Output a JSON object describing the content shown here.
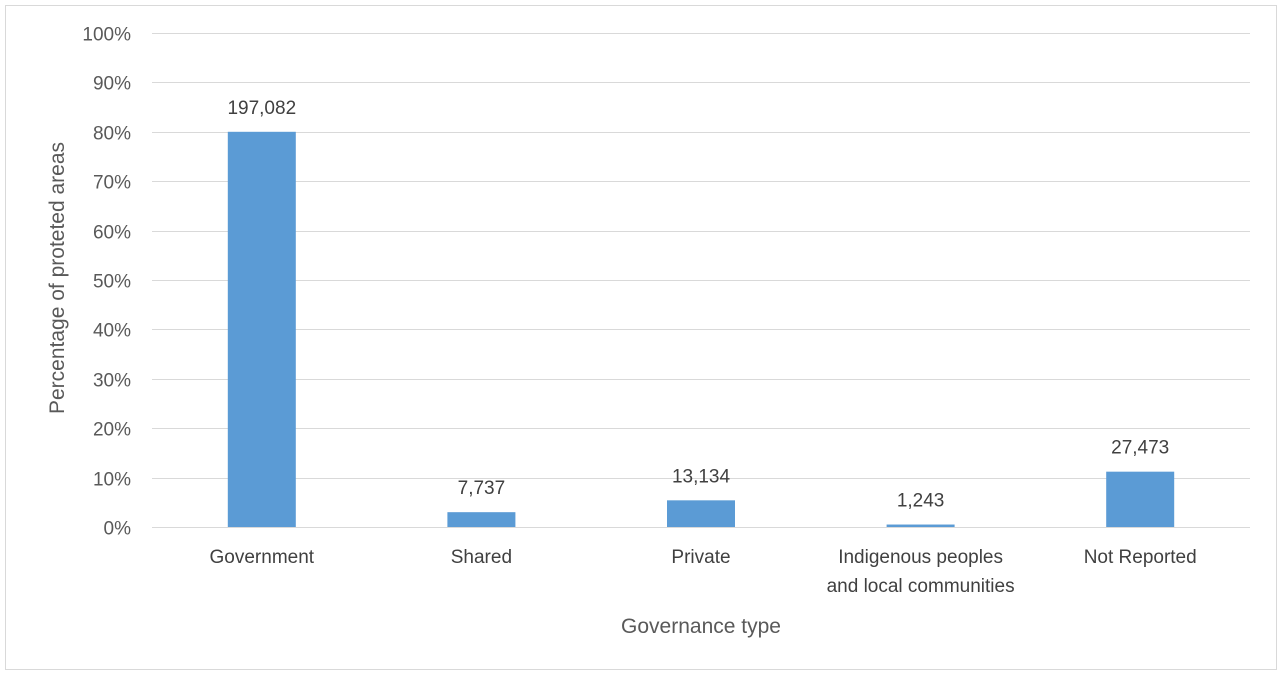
{
  "chart_data": {
    "type": "bar",
    "title": "",
    "xlabel": "Governance type",
    "ylabel": "Percentage of proteted areas",
    "ylim": [
      0,
      100
    ],
    "y_ticks": [
      "0%",
      "10%",
      "20%",
      "30%",
      "40%",
      "50%",
      "60%",
      "70%",
      "80%",
      "90%",
      "100%"
    ],
    "categories": [
      [
        "Government"
      ],
      [
        "Shared"
      ],
      [
        "Private"
      ],
      [
        "Indigenous peoples",
        "and local communities"
      ],
      [
        "Not Reported"
      ]
    ],
    "values": [
      80,
      3,
      5.4,
      0.5,
      11.2
    ],
    "data_labels": [
      "197,082",
      "7,737",
      "13,134",
      "1,243",
      "27,473"
    ],
    "grid": true,
    "legend": "none",
    "bar_color": "#5b9bd5",
    "grid_color": "#d9d9d9"
  }
}
